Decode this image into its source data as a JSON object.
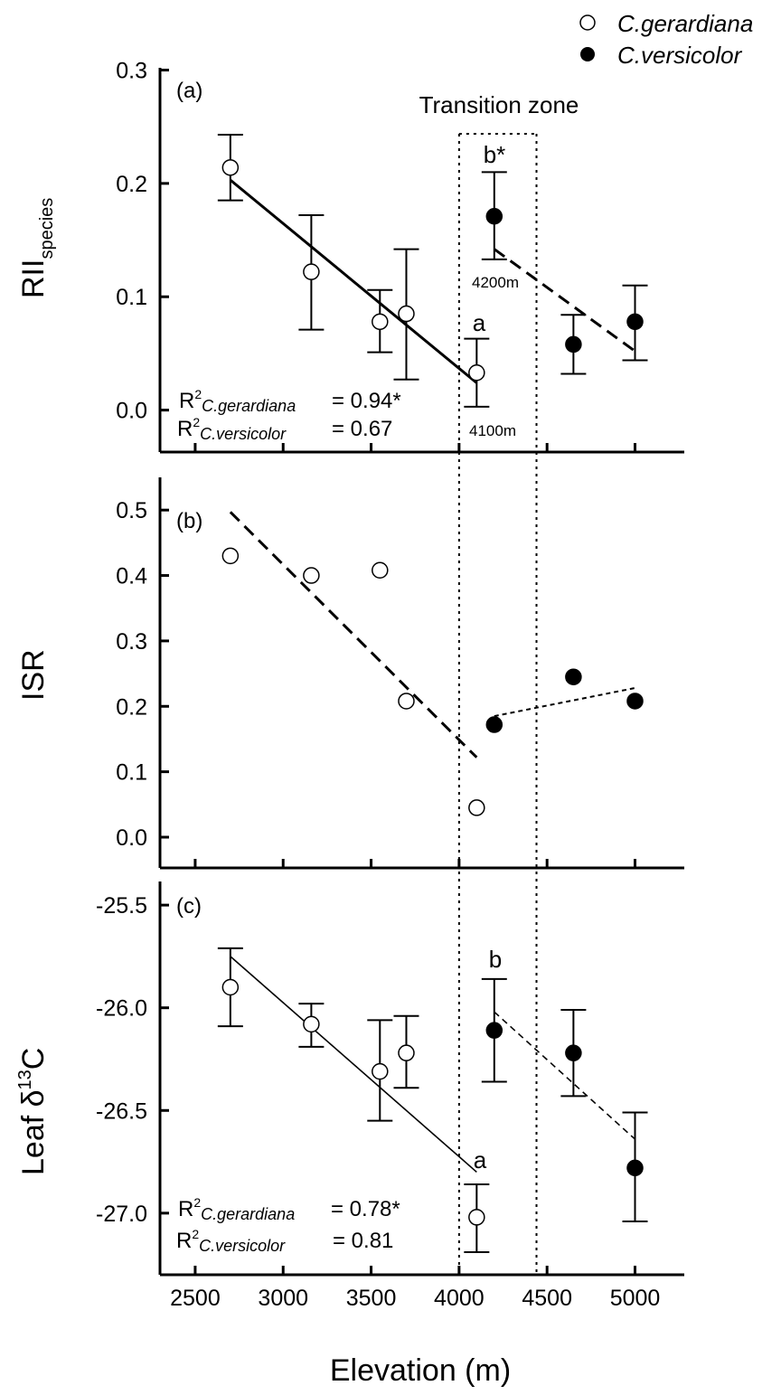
{
  "legend": [
    {
      "label": "C.gerardiana",
      "marker": "open-circle"
    },
    {
      "label": "C.versicolor",
      "marker": "filled-circle"
    }
  ],
  "x_axis": {
    "label": "Elevation (m)",
    "ticks": [
      2500,
      3000,
      3500,
      4000,
      4500,
      5000
    ],
    "range": [
      2300,
      5280
    ]
  },
  "transition_zone": {
    "label": "Transition zone",
    "from": 4000,
    "to": 4440
  },
  "chart_data": [
    {
      "type": "scatter",
      "panel": "(a)",
      "ylabel": "RII",
      "ylabel_sub": "species",
      "ylim": [
        -0.037,
        0.302
      ],
      "yticks": [
        "0.0",
        "0.1",
        "0.2",
        "0.3"
      ],
      "series": [
        {
          "name": "C.gerardiana",
          "filled": false,
          "x": [
            2700,
            3160,
            3550,
            3700,
            4100
          ],
          "y": [
            0.214,
            0.122,
            0.078,
            0.085,
            0.033
          ],
          "err_low": [
            0.185,
            0.071,
            0.051,
            0.027,
            0.003
          ],
          "err_high": [
            0.243,
            0.172,
            0.106,
            0.142,
            0.063
          ],
          "fit": {
            "style": "solid",
            "x": [
              2700,
              4100
            ],
            "y": [
              0.203,
              0.024
            ]
          }
        },
        {
          "name": "C.versicolor",
          "filled": true,
          "x": [
            4200,
            4650,
            5000
          ],
          "y": [
            0.171,
            0.058,
            0.078
          ],
          "err_low": [
            0.133,
            0.032,
            0.044
          ],
          "err_high": [
            0.21,
            0.084,
            0.11
          ],
          "fit": {
            "style": "dashed",
            "x": [
              4200,
              5000
            ],
            "y": [
              0.142,
              0.052
            ]
          }
        }
      ],
      "annotations": {
        "b_star": "b*",
        "a": "a",
        "e4200": "4200m",
        "e4100": "4100m",
        "r2_1_label": "C.gerardiana",
        "r2_1_value": "= 0.94*",
        "r2_2_label": "C.versicolor",
        "r2_2_value": "= 0.67",
        "r": "R",
        "sup": "2"
      }
    },
    {
      "type": "scatter",
      "panel": "(b)",
      "ylabel": "ISR",
      "ylim": [
        -0.047,
        0.55
      ],
      "yticks": [
        "0.0",
        "0.1",
        "0.2",
        "0.3",
        "0.4",
        "0.5"
      ],
      "series": [
        {
          "name": "C.gerardiana",
          "filled": false,
          "x": [
            2700,
            3160,
            3550,
            3700,
            4100
          ],
          "y": [
            0.43,
            0.4,
            0.408,
            0.208,
            0.045
          ],
          "fit": {
            "style": "dashed",
            "x": [
              2700,
              4100
            ],
            "y": [
              0.497,
              0.122
            ]
          }
        },
        {
          "name": "C.versicolor",
          "filled": true,
          "x": [
            4200,
            4650,
            5000
          ],
          "y": [
            0.172,
            0.245,
            0.208
          ],
          "fit": {
            "style": "dotted",
            "x": [
              4200,
              5000
            ],
            "y": [
              0.185,
              0.228
            ]
          }
        }
      ]
    },
    {
      "type": "scatter",
      "panel": "(c)",
      "ylabel": "Leaf δ",
      "ylabel_sup": "13",
      "ylabel_tail": "C",
      "ylim": [
        -27.3,
        -25.385
      ],
      "yticks": [
        "-25.5",
        "-26.0",
        "-26.5",
        "-27.0"
      ],
      "series": [
        {
          "name": "C.gerardiana",
          "filled": false,
          "x": [
            2700,
            3160,
            3550,
            3700,
            4100
          ],
          "y": [
            -25.9,
            -26.08,
            -26.31,
            -26.22,
            -27.02
          ],
          "err_low": [
            -26.09,
            -26.19,
            -26.55,
            -26.39,
            -27.19
          ],
          "err_high": [
            -25.71,
            -25.98,
            -26.06,
            -26.04,
            -26.86
          ],
          "fit": {
            "style": "thin-solid",
            "x": [
              2700,
              4100
            ],
            "y": [
              -25.75,
              -26.8
            ]
          }
        },
        {
          "name": "C.versicolor",
          "filled": true,
          "x": [
            4200,
            4650,
            5000
          ],
          "y": [
            -26.11,
            -26.22,
            -26.78
          ],
          "err_low": [
            -26.36,
            -26.43,
            -27.04
          ],
          "err_high": [
            -25.86,
            -26.01,
            -26.51
          ],
          "fit": {
            "style": "thin-dashed",
            "x": [
              4200,
              5000
            ],
            "y": [
              -26.02,
              -26.64
            ]
          }
        }
      ],
      "annotations": {
        "b": "b",
        "a": "a",
        "r2_1_label": "C.gerardiana",
        "r2_1_value": "= 0.78*",
        "r2_2_label": "C.versicolor",
        "r2_2_value": "= 0.81",
        "r": "R",
        "sup": "2"
      }
    }
  ]
}
